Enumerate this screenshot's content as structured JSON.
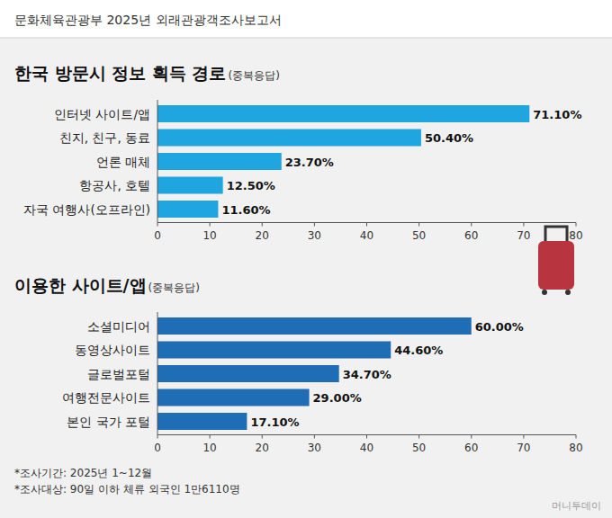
{
  "header": {
    "title": "문화체육관광부 2025년 외래관광객조사보고서"
  },
  "chart_data": [
    {
      "type": "bar",
      "orientation": "horizontal",
      "title": "한국 방문시 정보 획득 경로",
      "subtitle": "(중복응답)",
      "categories": [
        "인터넷 사이트/앱",
        "친지, 친구, 동료",
        "언론 매체",
        "항공사, 호텔",
        "자국 여행사(오프라인)"
      ],
      "values": [
        71.1,
        50.4,
        23.7,
        12.5,
        11.6
      ],
      "value_labels": [
        "71.10%",
        "50.40%",
        "23.70%",
        "12.50%",
        "11.60%"
      ],
      "color": "#1fa6e0",
      "xlim": [
        0,
        80
      ],
      "xticks": [
        0,
        10,
        20,
        30,
        40,
        50,
        60,
        70,
        80
      ],
      "grid": false,
      "data_labels": true
    },
    {
      "type": "bar",
      "orientation": "horizontal",
      "title": "이용한 사이트/앱",
      "subtitle": "(중복응답)",
      "categories": [
        "소셜미디어",
        "동영상사이트",
        "글로벌포털",
        "여행전문사이트",
        "본인 국가 포털"
      ],
      "values": [
        60.0,
        44.6,
        34.7,
        29.0,
        17.1
      ],
      "value_labels": [
        "60.00%",
        "44.60%",
        "34.70%",
        "29.00%",
        "17.10%"
      ],
      "color": "#1f6db4",
      "xlim": [
        0,
        80
      ],
      "xticks": [
        0,
        10,
        20,
        30,
        40,
        50,
        60,
        70,
        80
      ],
      "grid": false,
      "data_labels": true
    }
  ],
  "notes": [
    "*조사기간: 2025년 1~12월",
    "*조사대상: 90일 이하 체류 외국인 1만6110명"
  ],
  "source": "머니투데이"
}
